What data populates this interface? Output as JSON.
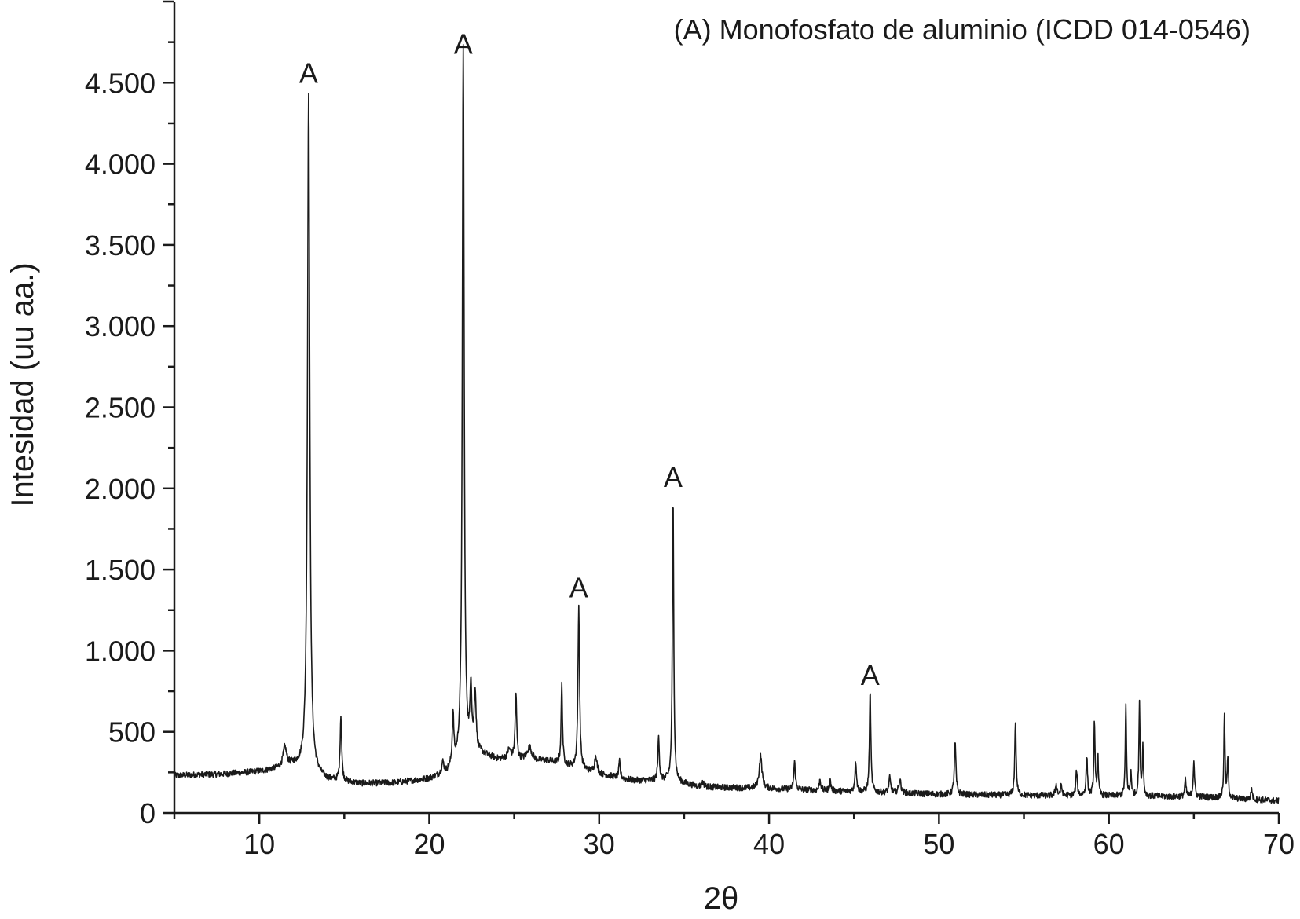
{
  "chart_data": {
    "type": "line",
    "legend_text": "(A) Monofosfato de aluminio (ICDD 014-0546)",
    "legend_position": "top-right",
    "xlabel": "2θ",
    "ylabel": "Intesidad (uu aa.)",
    "xlim": [
      5,
      70
    ],
    "ylim": [
      0,
      5000
    ],
    "grid": false,
    "x_ticks": [
      10,
      20,
      30,
      40,
      50,
      60,
      70
    ],
    "x_tick_labels": [
      "10",
      "20",
      "30",
      "40",
      "50",
      "60",
      "70"
    ],
    "y_ticks": [
      0,
      500,
      1000,
      1500,
      2000,
      2500,
      3000,
      3500,
      4000,
      4500
    ],
    "y_tick_labels": [
      "0",
      "500",
      "1.000",
      "1.500",
      "2.000",
      "2.500",
      "3.000",
      "3.500",
      "4.000",
      "4.500"
    ],
    "series": [
      {
        "baseline": [
          [
            5,
            230
          ],
          [
            8,
            240
          ],
          [
            10,
            255
          ],
          [
            11,
            270
          ],
          [
            12,
            290
          ],
          [
            14,
            200
          ],
          [
            16,
            180
          ],
          [
            18,
            185
          ],
          [
            20,
            210
          ],
          [
            21,
            240
          ],
          [
            22.5,
            380
          ],
          [
            24,
            330
          ],
          [
            27,
            320
          ],
          [
            28.5,
            280
          ],
          [
            30,
            240
          ],
          [
            32,
            200
          ],
          [
            34,
            200
          ],
          [
            36,
            160
          ],
          [
            40,
            150
          ],
          [
            45,
            130
          ],
          [
            50,
            115
          ],
          [
            55,
            108
          ],
          [
            60,
            105
          ],
          [
            65,
            100
          ],
          [
            70,
            75
          ]
        ],
        "peaks": [
          [
            11.5,
            120,
            0.15
          ],
          [
            12.9,
            4200,
            0.1
          ],
          [
            14.8,
            400,
            0.07
          ],
          [
            20.8,
            70,
            0.1
          ],
          [
            21.4,
            300,
            0.07
          ],
          [
            22.0,
            4400,
            0.08
          ],
          [
            22.45,
            380,
            0.07
          ],
          [
            22.7,
            360,
            0.08
          ],
          [
            24.7,
            60,
            0.15
          ],
          [
            25.1,
            400,
            0.07
          ],
          [
            25.9,
            80,
            0.2
          ],
          [
            27.8,
            490,
            0.06
          ],
          [
            28.8,
            1000,
            0.07
          ],
          [
            29.8,
            110,
            0.1
          ],
          [
            31.2,
            100,
            0.06
          ],
          [
            33.5,
            280,
            0.06
          ],
          [
            34.35,
            1750,
            0.06
          ],
          [
            36.1,
            30,
            0.1
          ],
          [
            39.5,
            200,
            0.12
          ],
          [
            41.5,
            170,
            0.07
          ],
          [
            43.0,
            70,
            0.07
          ],
          [
            43.6,
            60,
            0.07
          ],
          [
            45.1,
            190,
            0.07
          ],
          [
            45.95,
            620,
            0.06
          ],
          [
            47.1,
            90,
            0.08
          ],
          [
            47.7,
            80,
            0.1
          ],
          [
            50.95,
            320,
            0.07
          ],
          [
            54.5,
            460,
            0.06
          ],
          [
            56.9,
            70,
            0.07
          ],
          [
            57.2,
            60,
            0.07
          ],
          [
            58.1,
            160,
            0.06
          ],
          [
            58.7,
            240,
            0.06
          ],
          [
            59.15,
            460,
            0.05
          ],
          [
            59.35,
            250,
            0.05
          ],
          [
            61.0,
            560,
            0.05
          ],
          [
            61.3,
            150,
            0.05
          ],
          [
            61.8,
            560,
            0.05
          ],
          [
            62.0,
            300,
            0.05
          ],
          [
            64.5,
            100,
            0.06
          ],
          [
            65.0,
            220,
            0.06
          ],
          [
            66.8,
            510,
            0.05
          ],
          [
            67.0,
            250,
            0.05
          ],
          [
            68.4,
            70,
            0.06
          ]
        ]
      }
    ],
    "peak_labels": [
      {
        "text": "A",
        "x": 12.9,
        "y": 4440
      },
      {
        "text": "A",
        "x": 22.0,
        "y": 4620
      },
      {
        "text": "A",
        "x": 28.8,
        "y": 1270
      },
      {
        "text": "A",
        "x": 34.35,
        "y": 1950
      },
      {
        "text": "A",
        "x": 45.95,
        "y": 730
      }
    ],
    "colors": {
      "line": "#1a1a1a",
      "axis": "#1a1a1a",
      "background": "#ffffff"
    }
  }
}
